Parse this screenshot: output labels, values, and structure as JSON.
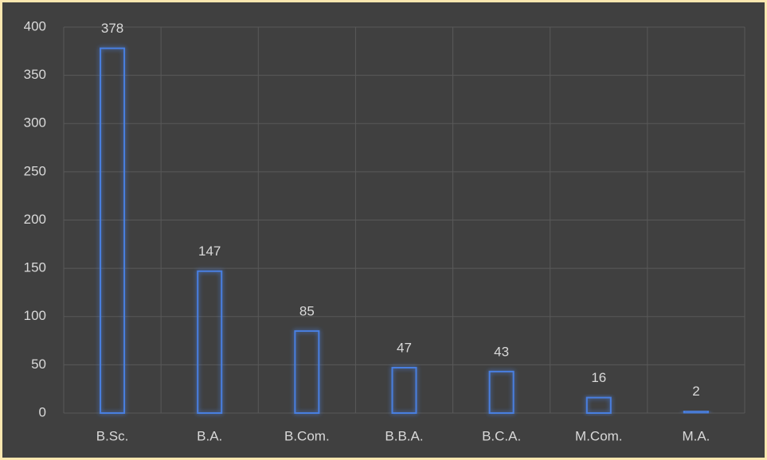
{
  "chart_data": {
    "type": "bar",
    "categories": [
      "B.Sc.",
      "B.A.",
      "B.Com.",
      "B.B.A.",
      "B.C.A.",
      "M.Com.",
      "M.A."
    ],
    "values": [
      378,
      147,
      85,
      47,
      43,
      16,
      2
    ],
    "color": "#4a7fe0",
    "ylim": [
      0,
      400
    ],
    "yticks": [
      0,
      50,
      100,
      150,
      200,
      250,
      300,
      350,
      400
    ],
    "grid": true
  }
}
